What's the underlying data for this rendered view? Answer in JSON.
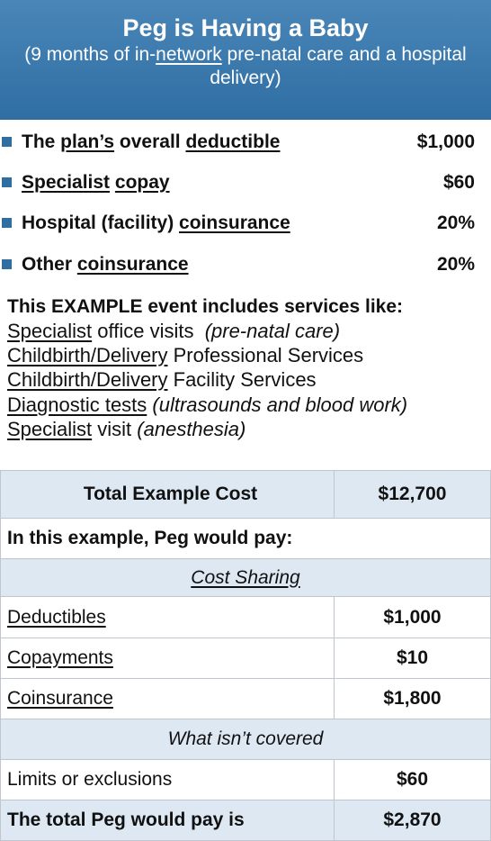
{
  "header": {
    "title": "Peg is Having a Baby",
    "subtitle": [
      "(9 months of in-",
      "network",
      " pre-natal care and a hospital delivery)"
    ]
  },
  "plan": [
    {
      "label": [
        "The ",
        "plan’s",
        " overall ",
        "deductible"
      ],
      "value": "$1,000"
    },
    {
      "label": [
        "Specialist",
        " ",
        "copay"
      ],
      "value": "$60"
    },
    {
      "label": [
        "Hospital (facility) ",
        "coinsurance"
      ],
      "value": "20%"
    },
    {
      "label": [
        "Other ",
        "coinsurance"
      ],
      "value": "20%"
    }
  ],
  "services": {
    "heading": "This EXAMPLE event includes services like:",
    "items": [
      [
        "Specialist",
        " office visits  ",
        "(pre-natal care)"
      ],
      [
        "Childbirth/Delivery",
        " Professional Services"
      ],
      [
        "Childbirth/Delivery",
        " Facility Services"
      ],
      [
        "Diagnostic tests",
        " ",
        "(ultrasounds and blood work)"
      ],
      [
        "Specialist",
        " visit ",
        "(anesthesia)"
      ]
    ]
  },
  "table": {
    "total": [
      "Total Example Cost",
      "$12,700"
    ],
    "intro": "In this example, Peg would pay:",
    "sections": [
      {
        "heading": "Cost Sharing",
        "rows": [
          [
            "Deductibles",
            "$1,000"
          ],
          [
            "Copayments",
            "$10"
          ],
          [
            "Coinsurance",
            "$1,800"
          ]
        ]
      },
      {
        "heading": "What isn’t covered",
        "rows": [
          [
            "Limits or exclusions",
            "$60"
          ]
        ]
      }
    ],
    "final": [
      "The total Peg would pay is",
      "$2,870"
    ]
  }
}
